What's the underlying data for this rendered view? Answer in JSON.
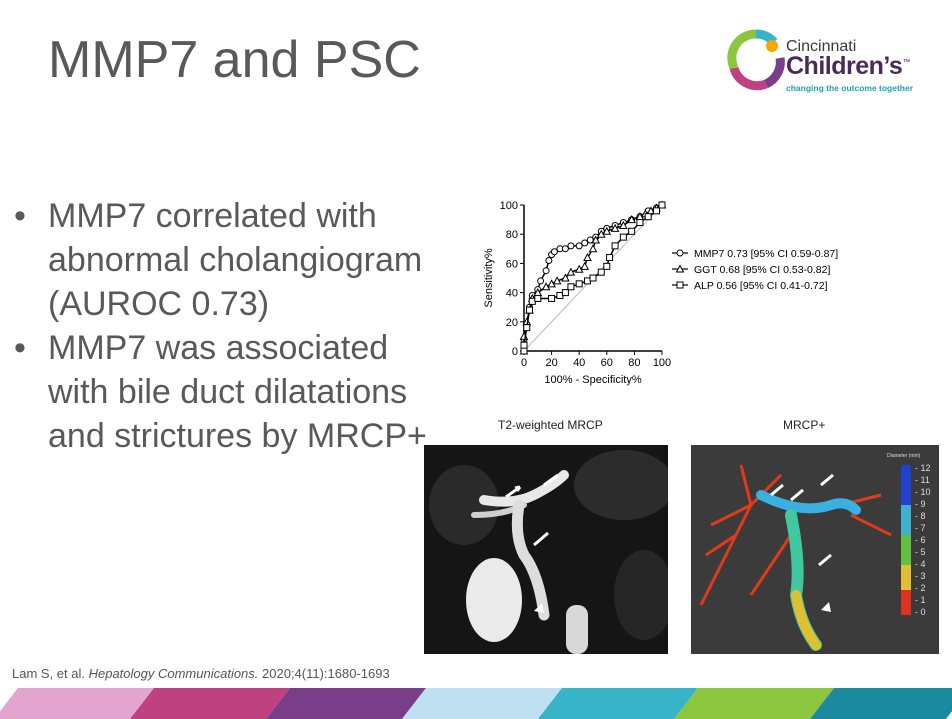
{
  "slide": {
    "title": "MMP7 and PSC",
    "logo": {
      "line1": "Cincinnati",
      "line2": "Children’s",
      "tm": "™",
      "tagline": "changing the outcome together"
    },
    "bullets": [
      {
        "text": "MMP7 correlated with abnormal cholangiogram (AUROC 0.73)"
      },
      {
        "text": "MMP7 was associated with bile duct dilatations and strictures by MRCP+"
      }
    ],
    "bullet_char": "•",
    "images": {
      "t2_label": "T2-weighted MRCP",
      "mrcp_label": "MRCP+",
      "colorbar_title": "Diameter (mm)",
      "colorbar_ticks": [
        "12",
        "11",
        "10",
        "9",
        "8",
        "7",
        "6",
        "5",
        "4",
        "3",
        "2",
        "1",
        "0"
      ]
    },
    "citation": {
      "authors": "Lam S, et al. ",
      "journal": "Hepatology Communications.",
      "details": " 2020;4(11):1680-1693"
    },
    "footer_colors": [
      "#e3a4d0",
      "#c0417f",
      "#7a3d8a",
      "#bfe0f0",
      "#37b4c8",
      "#8cc63f",
      "#1c8a9e"
    ]
  },
  "chart_data": {
    "type": "line",
    "xlabel": "100% - Specificity%",
    "ylabel": "Sensitivity%",
    "xlim": [
      0,
      100
    ],
    "ylim": [
      0,
      100
    ],
    "xticks": [
      0,
      20,
      40,
      60,
      80,
      100
    ],
    "yticks": [
      0,
      20,
      40,
      60,
      80,
      100
    ],
    "legend_position": "right",
    "series": [
      {
        "name": "MMP7 0.73 [95% CI 0.59-0.87]",
        "marker": "circle",
        "x": [
          0,
          0,
          2,
          4,
          6,
          10,
          12,
          16,
          18,
          20,
          22,
          26,
          30,
          34,
          40,
          44,
          48,
          52,
          56,
          60,
          66,
          72,
          78,
          84,
          90,
          96,
          100
        ],
        "y": [
          0,
          8,
          18,
          30,
          38,
          42,
          48,
          55,
          62,
          66,
          68,
          70,
          70,
          72,
          72,
          74,
          76,
          78,
          82,
          84,
          86,
          88,
          90,
          92,
          96,
          98,
          100
        ]
      },
      {
        "name": "GGT 0.68 [95% CI 0.53-0.82]",
        "marker": "triangle",
        "x": [
          0,
          0,
          2,
          4,
          6,
          10,
          16,
          20,
          24,
          30,
          34,
          40,
          44,
          46,
          50,
          52,
          56,
          60,
          66,
          72,
          78,
          84,
          88,
          92,
          96,
          100
        ],
        "y": [
          0,
          10,
          20,
          28,
          36,
          40,
          44,
          46,
          48,
          50,
          54,
          56,
          58,
          64,
          70,
          76,
          80,
          82,
          84,
          86,
          90,
          92,
          94,
          96,
          98,
          100
        ]
      },
      {
        "name": "ALP 0.56 [95% CI 0.41-0.72]",
        "marker": "square",
        "x": [
          0,
          0,
          2,
          4,
          6,
          10,
          20,
          26,
          30,
          34,
          40,
          46,
          50,
          56,
          60,
          62,
          66,
          72,
          78,
          84,
          90,
          96,
          100
        ],
        "y": [
          0,
          4,
          16,
          28,
          34,
          36,
          36,
          38,
          40,
          44,
          46,
          48,
          50,
          54,
          58,
          64,
          72,
          78,
          82,
          88,
          92,
          96,
          100
        ]
      }
    ]
  }
}
